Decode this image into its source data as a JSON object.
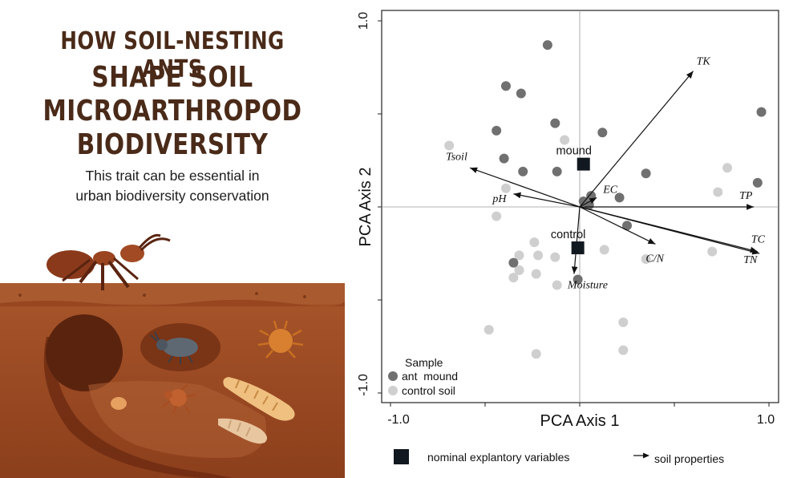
{
  "infographic": {
    "title_line1": "HOW SOIL-NESTING ANTS",
    "title_line2": "SHAPE SOIL",
    "title_line3": "MICROARTHROPOD",
    "title_line4": "BIODIVERSITY",
    "subtitle_line1": "This trait can be essential in",
    "subtitle_line2": "urban biodiversity conservation"
  },
  "colors": {
    "title": "#4a2a18",
    "soil": "#9b4a22",
    "ant_mound": "#707070",
    "control_soil": "#cfcfcf",
    "centroid": "#121820"
  },
  "chart_data": {
    "type": "scatter",
    "xlabel": "PCA Axis 1",
    "ylabel": "PCA Axis 2",
    "xlim": [
      -1.0,
      1.0
    ],
    "ylim": [
      -1.0,
      1.0
    ],
    "x_tick_labels": [
      "-1.0",
      "1.0"
    ],
    "y_tick_labels": [
      "1.0",
      "-1.0"
    ],
    "legend": {
      "title": "Sample",
      "items": [
        "ant  mound",
        "control soil"
      ]
    },
    "series": [
      {
        "name": "ant  mound",
        "points": [
          [
            -0.17,
            0.87
          ],
          [
            -0.39,
            0.65
          ],
          [
            -0.31,
            0.61
          ],
          [
            -0.13,
            0.45
          ],
          [
            -0.44,
            0.41
          ],
          [
            0.12,
            0.4
          ],
          [
            -0.4,
            0.26
          ],
          [
            -0.3,
            0.19
          ],
          [
            -0.12,
            0.19
          ],
          [
            0.35,
            0.18
          ],
          [
            0.94,
            0.13
          ],
          [
            0.02,
            0.03
          ],
          [
            0.06,
            0.06
          ],
          [
            0.05,
            0.01
          ],
          [
            0.21,
            0.05
          ],
          [
            0.25,
            -0.1
          ],
          [
            0.96,
            0.51
          ],
          [
            -0.35,
            -0.3
          ],
          [
            -0.01,
            -0.39
          ]
        ]
      },
      {
        "name": "control soil",
        "points": [
          [
            -0.69,
            0.33
          ],
          [
            -0.08,
            0.36
          ],
          [
            0.78,
            0.21
          ],
          [
            0.73,
            0.08
          ],
          [
            -0.39,
            0.1
          ],
          [
            -0.44,
            -0.05
          ],
          [
            -0.24,
            -0.19
          ],
          [
            -0.22,
            -0.26
          ],
          [
            -0.32,
            -0.26
          ],
          [
            -0.32,
            -0.34
          ],
          [
            -0.32,
            -0.34
          ],
          [
            -0.13,
            -0.27
          ],
          [
            0.13,
            -0.23
          ],
          [
            0.35,
            -0.28
          ],
          [
            -0.35,
            -0.38
          ],
          [
            -0.23,
            -0.36
          ],
          [
            -0.12,
            -0.42
          ],
          [
            0.7,
            -0.24
          ],
          [
            -0.48,
            -0.66
          ],
          [
            0.23,
            -0.62
          ],
          [
            0.23,
            -0.77
          ],
          [
            -0.23,
            -0.79
          ]
        ]
      }
    ],
    "centroids": [
      {
        "label": "mound",
        "x": 0.02,
        "y": 0.23
      },
      {
        "label": "control",
        "x": -0.01,
        "y": -0.22
      }
    ],
    "vectors": [
      {
        "label": "TK",
        "x": 0.6,
        "y": 0.73
      },
      {
        "label": "Tsoil",
        "x": -0.58,
        "y": 0.21
      },
      {
        "label": "EC",
        "x": 0.09,
        "y": 0.05
      },
      {
        "label": "pH",
        "x": -0.35,
        "y": 0.07
      },
      {
        "label": "TP",
        "x": 0.92,
        "y": 0.0
      },
      {
        "label": "C/N",
        "x": 0.4,
        "y": -0.2
      },
      {
        "label": "TC",
        "x": 0.94,
        "y": -0.24
      },
      {
        "label": "TN",
        "x": 0.95,
        "y": -0.25
      },
      {
        "label": "Moisture",
        "x": -0.03,
        "y": -0.36
      }
    ],
    "bottom_legend": {
      "square_label": "nominal explantory variables",
      "arrow_label": "soil properties"
    }
  }
}
